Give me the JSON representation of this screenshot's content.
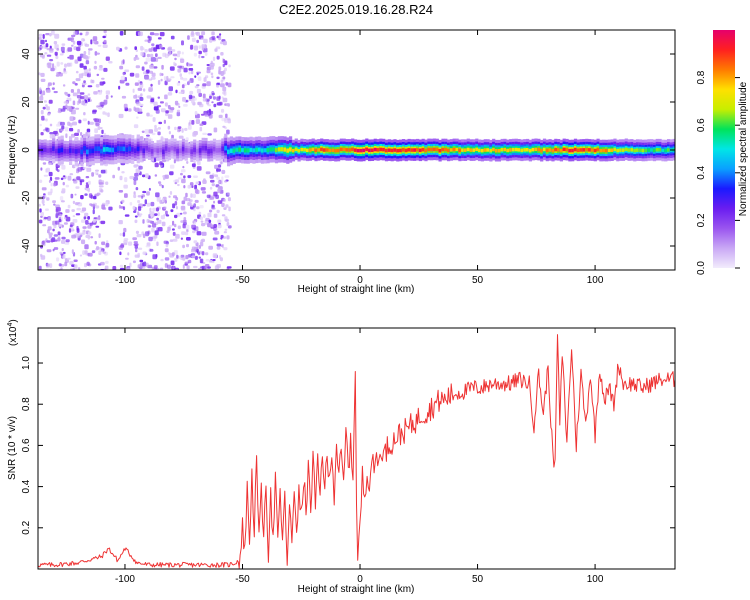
{
  "figure": {
    "title": "C2E2.2025.019.16.28.R24"
  },
  "chart_data": [
    {
      "type": "heatmap",
      "title": "C2E2.2025.019.16.28.R24",
      "xlabel": "Height of straight line (km)",
      "ylabel": "Frequency (Hz)",
      "xlim": [
        -137,
        134
      ],
      "ylim": [
        -50,
        50
      ],
      "x_ticks": [
        -100,
        -50,
        0,
        50,
        100
      ],
      "x_tick_labels": [
        "-100",
        "-50",
        "0",
        "50",
        "100"
      ],
      "y_ticks": [
        -40,
        -20,
        0,
        20,
        40
      ],
      "y_tick_labels": [
        "-40",
        "-20",
        "0",
        "20",
        "40"
      ],
      "colorbar": {
        "label": "Normalized spectral amplitude",
        "range": [
          0,
          1
        ],
        "ticks": [
          0.0,
          0.2,
          0.4,
          0.6,
          0.8
        ],
        "tick_labels": [
          "0.0",
          "0.2",
          "0.4",
          "0.6",
          "0.8"
        ],
        "colors": [
          "#f2ecfc",
          "#c9a8f5",
          "#9a55ef",
          "#6a1df0",
          "#1a1aff",
          "#0aa0ff",
          "#00e6e6",
          "#00e35a",
          "#c8ee00",
          "#ffe000",
          "#ff7a00",
          "#ff2020",
          "#e6006b"
        ]
      },
      "features": {
        "diffuse_region_km": [
          -137,
          -56
        ],
        "gap_km": [
          [
            -108,
            -103
          ],
          [
            -100,
            -97
          ]
        ],
        "ridge_freq_hz": 0,
        "ridge": {
          "x": [
            -137,
            -120,
            -110,
            -100,
            -90,
            -80,
            -70,
            -60,
            -55,
            -50,
            -45,
            -40,
            -35,
            -30,
            -25,
            -20,
            -15,
            -10,
            -5,
            -2,
            0,
            10,
            20,
            30,
            40,
            50,
            60,
            70,
            80,
            90,
            100,
            110,
            120,
            134
          ],
          "peak_amplitude": [
            0.25,
            0.3,
            0.45,
            0.35,
            0.2,
            0.2,
            0.2,
            0.2,
            0.55,
            0.55,
            0.5,
            0.5,
            0.7,
            0.75,
            0.7,
            0.8,
            0.85,
            0.85,
            0.9,
            0.95,
            0.98,
            0.9,
            0.9,
            0.88,
            0.8,
            0.75,
            0.75,
            0.75,
            0.8,
            0.9,
            0.85,
            0.7,
            0.6,
            0.55
          ]
        }
      }
    },
    {
      "type": "line",
      "xlabel": "Height of straight line (km)",
      "ylabel": "SNR (10 * v/v)",
      "y_multiplier": "(x10",
      "y_multiplier_exponent": "4",
      "y_multiplier_close": ")",
      "xlim": [
        -137,
        134
      ],
      "ylim": [
        0,
        1.17
      ],
      "x_ticks": [
        -100,
        -50,
        0,
        50,
        100
      ],
      "x_tick_labels": [
        "-100",
        "-50",
        "0",
        "50",
        "100"
      ],
      "y_ticks": [
        0.2,
        0.4,
        0.6,
        0.8,
        1.0
      ],
      "y_tick_labels": [
        "0.2",
        "0.4",
        "0.6",
        "0.8",
        "1.0"
      ],
      "line_color": "#ee3333",
      "series": [
        {
          "x": [
            -137,
            -130,
            -120,
            -110,
            -107,
            -103,
            -100,
            -97,
            -95,
            -90,
            -80,
            -70,
            -60,
            -56,
            -53,
            -51,
            -50,
            -49,
            -48,
            -47,
            -46,
            -45,
            -44,
            -43,
            -42,
            -41,
            -40,
            -39,
            -38,
            -37,
            -36,
            -35,
            -34,
            -33,
            -32,
            -31,
            -30,
            -29,
            -28,
            -27,
            -26,
            -25,
            -24,
            -23,
            -22,
            -21,
            -20,
            -19,
            -18,
            -17,
            -16,
            -15,
            -14,
            -13,
            -12,
            -11,
            -10,
            -9,
            -8,
            -7,
            -6,
            -5,
            -4,
            -3,
            -2,
            -1.5,
            -1,
            0,
            1,
            2,
            3,
            4,
            5,
            6,
            7,
            8,
            9,
            10,
            12,
            14,
            16,
            18,
            20,
            22,
            24,
            26,
            28,
            30,
            32,
            34,
            36,
            38,
            40,
            44,
            48,
            52,
            56,
            60,
            64,
            68,
            72,
            74,
            76,
            78,
            80,
            82,
            83,
            84,
            85,
            86,
            88,
            90,
            92,
            94,
            96,
            98,
            100,
            102,
            104,
            106,
            108,
            110,
            112,
            116,
            120,
            124,
            128,
            134
          ],
          "y": [
            0.02,
            0.02,
            0.03,
            0.06,
            0.1,
            0.04,
            0.1,
            0.06,
            0.03,
            0.02,
            0.02,
            0.02,
            0.02,
            0.02,
            0.03,
            0.05,
            0.2,
            0.1,
            0.38,
            0.15,
            0.45,
            0.2,
            0.5,
            0.12,
            0.46,
            0.1,
            0.42,
            0.08,
            0.4,
            0.12,
            0.45,
            0.1,
            0.36,
            0.15,
            0.33,
            0.05,
            0.28,
            0.12,
            0.4,
            0.2,
            0.36,
            0.25,
            0.42,
            0.3,
            0.48,
            0.28,
            0.55,
            0.3,
            0.5,
            0.35,
            0.58,
            0.4,
            0.52,
            0.42,
            0.6,
            0.35,
            0.62,
            0.45,
            0.55,
            0.4,
            0.66,
            0.5,
            0.6,
            0.45,
            1.0,
            0.3,
            0.05,
            0.2,
            0.45,
            0.35,
            0.5,
            0.4,
            0.55,
            0.45,
            0.58,
            0.5,
            0.6,
            0.55,
            0.6,
            0.62,
            0.65,
            0.66,
            0.68,
            0.7,
            0.72,
            0.75,
            0.76,
            0.78,
            0.8,
            0.82,
            0.82,
            0.84,
            0.85,
            0.86,
            0.88,
            0.88,
            0.9,
            0.9,
            0.9,
            0.92,
            0.9,
            0.7,
            0.95,
            0.75,
            0.98,
            0.55,
            0.5,
            1.15,
            0.7,
            1.05,
            0.62,
            1.08,
            0.6,
            0.95,
            0.7,
            0.95,
            0.65,
            0.98,
            0.82,
            0.88,
            0.8,
            1.0,
            0.9,
            0.9,
            0.88,
            0.9,
            0.92,
            0.92
          ]
        }
      ]
    }
  ]
}
